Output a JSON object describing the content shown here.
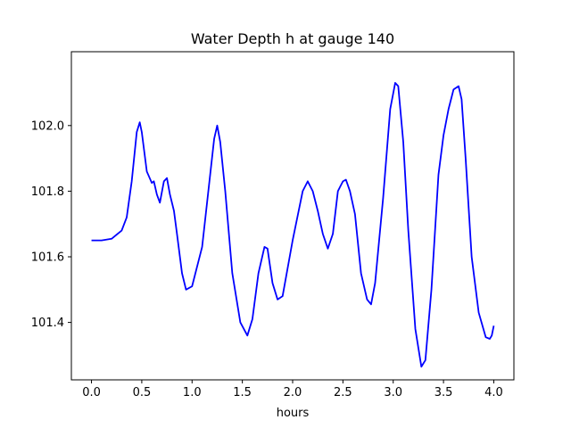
{
  "chart_data": {
    "type": "line",
    "title": "Water Depth h at gauge 140",
    "xlabel": "hours",
    "ylabel": "",
    "xlim": [
      -0.2,
      4.2
    ],
    "ylim": [
      101.225,
      102.225
    ],
    "grid": false,
    "xticks": [
      0.0,
      0.5,
      1.0,
      1.5,
      2.0,
      2.5,
      3.0,
      3.5,
      4.0
    ],
    "xtick_labels": [
      "0.0",
      "0.5",
      "1.0",
      "1.5",
      "2.0",
      "2.5",
      "3.0",
      "3.5",
      "4.0"
    ],
    "yticks": [
      101.4,
      101.6,
      101.8,
      102.0
    ],
    "ytick_labels": [
      "101.4",
      "101.6",
      "101.8",
      "102.0"
    ],
    "series": [
      {
        "color": "#0000ff",
        "x": [
          0.0,
          0.1,
          0.2,
          0.3,
          0.35,
          0.4,
          0.45,
          0.48,
          0.5,
          0.55,
          0.6,
          0.62,
          0.65,
          0.68,
          0.72,
          0.75,
          0.78,
          0.82,
          0.85,
          0.9,
          0.94,
          1.0,
          1.1,
          1.18,
          1.22,
          1.25,
          1.28,
          1.33,
          1.4,
          1.48,
          1.55,
          1.6,
          1.66,
          1.72,
          1.75,
          1.8,
          1.85,
          1.9,
          2.0,
          2.1,
          2.15,
          2.2,
          2.25,
          2.3,
          2.35,
          2.4,
          2.45,
          2.5,
          2.53,
          2.57,
          2.62,
          2.68,
          2.74,
          2.78,
          2.82,
          2.9,
          2.97,
          3.02,
          3.05,
          3.1,
          3.15,
          3.22,
          3.28,
          3.32,
          3.38,
          3.45,
          3.5,
          3.55,
          3.6,
          3.65,
          3.68,
          3.72,
          3.78,
          3.85,
          3.92,
          3.96,
          3.98,
          4.0
        ],
        "y": [
          101.65,
          101.65,
          101.655,
          101.68,
          101.72,
          101.83,
          101.98,
          102.01,
          101.98,
          101.86,
          101.825,
          101.83,
          101.79,
          101.765,
          101.83,
          101.84,
          101.79,
          101.74,
          101.67,
          101.55,
          101.5,
          101.51,
          101.63,
          101.85,
          101.96,
          102.0,
          101.95,
          101.8,
          101.55,
          101.4,
          101.36,
          101.41,
          101.55,
          101.63,
          101.625,
          101.52,
          101.47,
          101.48,
          101.65,
          101.8,
          101.83,
          101.8,
          101.74,
          101.67,
          101.625,
          101.67,
          101.8,
          101.83,
          101.835,
          101.8,
          101.73,
          101.55,
          101.47,
          101.455,
          101.52,
          101.78,
          102.05,
          102.13,
          102.12,
          101.95,
          101.68,
          101.38,
          101.265,
          101.285,
          101.5,
          101.85,
          101.97,
          102.05,
          102.11,
          102.12,
          102.08,
          101.9,
          101.6,
          101.43,
          101.355,
          101.35,
          101.36,
          101.39
        ]
      }
    ]
  }
}
